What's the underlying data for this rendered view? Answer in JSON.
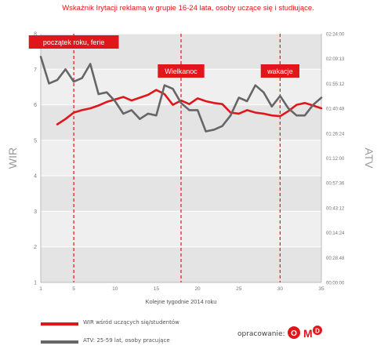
{
  "chart_data": {
    "type": "line",
    "title": "Wskaźnik Irytacji reklamą w grupie 16-24 lata, osoby uczące się i studiujące.",
    "xlabel": "Kolejne tygodnie 2014 roku",
    "ylabel_left": "WIR",
    "ylabel_right": "ATV",
    "x_ticks": [
      "1",
      "5",
      "10",
      "15",
      "20",
      "25",
      "30",
      "35"
    ],
    "y_left_ticks": [
      "1",
      "2",
      "3",
      "4",
      "5",
      "6",
      "7",
      "8"
    ],
    "y_left_range": [
      1,
      8
    ],
    "y_right_ticks": [
      "00:00:00",
      "00:28:48",
      "00:14:24",
      "00:43:12",
      "00:57:36",
      "01:12:00",
      "01:26:24",
      "01:40:48",
      "01:55:12",
      "02:09:13",
      "02:24:00"
    ],
    "y_right_range_hours": [
      0,
      2.4
    ],
    "x_range": [
      1,
      35
    ],
    "grid": true,
    "annotations": [
      {
        "label": "początek roku, ferie",
        "x": 5
      },
      {
        "label": "Wielkanoc",
        "x": 18
      },
      {
        "label": "wakacje",
        "x": 30
      }
    ],
    "series": [
      {
        "name": "WIR wśród uczących się/studentów",
        "color": "#e0161b",
        "axis": "left",
        "x": [
          3,
          4,
          5,
          6,
          7,
          8,
          9,
          10,
          11,
          12,
          13,
          14,
          15,
          16,
          17,
          18,
          19,
          20,
          21,
          22,
          23,
          24,
          25,
          26,
          27,
          28,
          29,
          30,
          31,
          32,
          33,
          34,
          35
        ],
        "values": [
          5.45,
          5.6,
          5.78,
          5.85,
          5.9,
          5.98,
          6.08,
          6.15,
          6.22,
          6.12,
          6.2,
          6.28,
          6.42,
          6.3,
          6.0,
          6.12,
          6.02,
          6.18,
          6.1,
          6.05,
          6.02,
          5.78,
          5.75,
          5.85,
          5.78,
          5.75,
          5.7,
          5.68,
          5.82,
          6.0,
          6.05,
          5.98,
          5.9
        ]
      },
      {
        "name": "ATV: 25-59 lat, osoby pracujące",
        "color": "#666666",
        "axis": "right",
        "x": [
          1,
          2,
          3,
          4,
          5,
          6,
          7,
          8,
          9,
          10,
          11,
          12,
          13,
          14,
          15,
          16,
          17,
          18,
          19,
          20,
          21,
          22,
          23,
          24,
          25,
          26,
          27,
          28,
          29,
          30,
          31,
          32,
          33,
          34,
          35
        ],
        "values": [
          7.35,
          6.6,
          6.7,
          7.0,
          6.65,
          6.75,
          7.15,
          6.3,
          6.35,
          6.1,
          5.75,
          5.85,
          5.6,
          5.75,
          5.7,
          6.55,
          6.45,
          6.05,
          5.85,
          5.85,
          5.25,
          5.3,
          5.4,
          5.7,
          6.2,
          6.1,
          6.55,
          6.35,
          5.95,
          6.25,
          5.9,
          5.7,
          5.7,
          6.0,
          6.2
        ]
      }
    ]
  },
  "credit": {
    "label": "opracowanie:",
    "logo": "OMD"
  }
}
